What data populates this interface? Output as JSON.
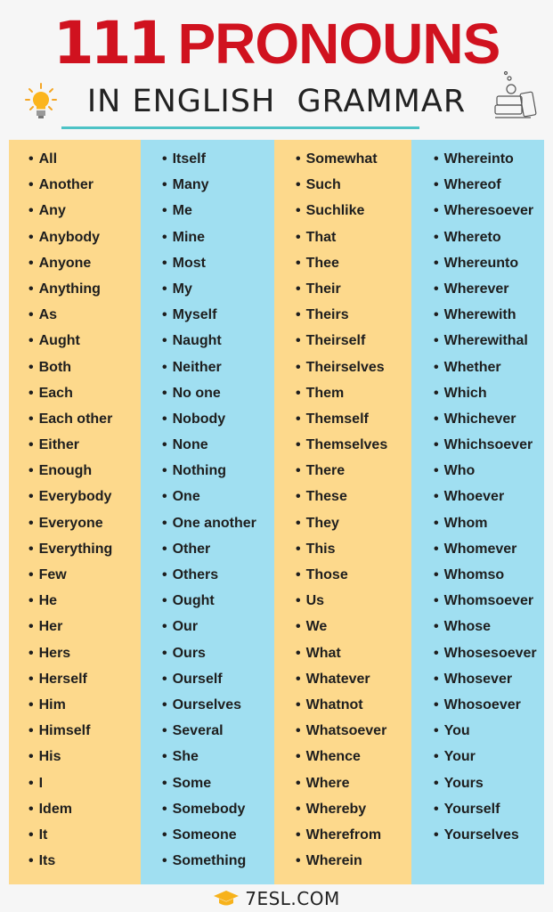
{
  "header": {
    "title_number": "111",
    "title_word": "PRONOUNS",
    "subtitle": "IN ENGLISH  GRAMMAR"
  },
  "colors": {
    "title_red": "#d0121f",
    "column_orange": "#fdd98c",
    "column_blue": "#a0dff1",
    "rule_teal": "#4dc3c6"
  },
  "columns": [
    {
      "items": [
        "All",
        "Another",
        "Any",
        "Anybody",
        "Anyone",
        "Anything",
        "As",
        "Aught",
        "Both",
        "Each",
        "Each other",
        "Either",
        "Enough",
        "Everybody",
        "Everyone",
        "Everything",
        "Few",
        "He",
        "Her",
        "Hers",
        "Herself",
        "Him",
        "Himself",
        "His",
        "I",
        "Idem",
        "It",
        "Its"
      ]
    },
    {
      "items": [
        "Itself",
        "Many",
        "Me",
        "Mine",
        "Most",
        "My",
        "Myself",
        "Naught",
        "Neither",
        "No one",
        "Nobody",
        "None",
        "Nothing",
        "One",
        "One another",
        "Other",
        "Others",
        "Ought",
        "Our",
        "Ours",
        "Ourself",
        "Ourselves",
        "Several",
        "She",
        "Some",
        "Somebody",
        "Someone",
        "Something"
      ]
    },
    {
      "items": [
        "Somewhat",
        "Such",
        "Suchlike",
        "That",
        "Thee",
        "Their",
        "Theirs",
        "Theirself",
        "Theirselves",
        "Them",
        "Themself",
        "Themselves",
        "There",
        "These",
        "They",
        "This",
        "Those",
        "Us",
        "We",
        "What",
        "Whatever",
        "Whatnot",
        "Whatsoever",
        "Whence",
        "Where",
        "Whereby",
        "Wherefrom",
        "Wherein"
      ]
    },
    {
      "items": [
        "Whereinto",
        "Whereof",
        "Wheresoever",
        "Whereto",
        "Whereunto",
        "Wherever",
        "Wherewith",
        "Wherewithal",
        "Whether",
        "Which",
        "Whichever",
        "Whichsoever",
        "Who",
        "Whoever",
        "Whom",
        "Whomever",
        "Whomso",
        "Whomsoever",
        "Whose",
        "Whosesoever",
        "Whosever",
        "Whosoever",
        "You",
        "Your",
        "Yours",
        "Yourself",
        "Yourselves"
      ]
    }
  ],
  "footer": {
    "logo_text": "7ESL.COM"
  }
}
